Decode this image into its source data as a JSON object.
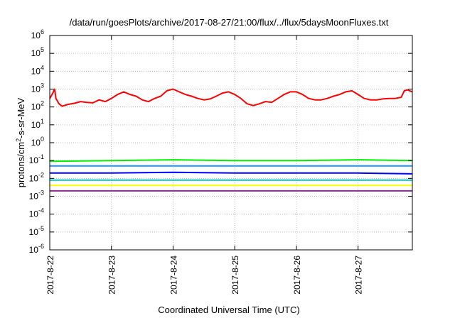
{
  "chart_data": {
    "type": "line",
    "title": "/data/run/goesPlots/archive/2017-08-27/21:00/flux/../flux/5daysMoonFluxes.txt",
    "xlabel": "Coordinated Universal Time (UTC)",
    "ylabel": {
      "prefix": "protons/cm",
      "sup": "2",
      "suffix": "-s-sr-MeV"
    },
    "yscale": "log",
    "ylim": [
      1e-06,
      1000000.0
    ],
    "xlim": [
      0,
      5.88
    ],
    "x_unit_note": "days after 2017-8-22 00:00 UTC",
    "grid": true,
    "y_ticks": [
      {
        "value": 1000000.0,
        "base": "10",
        "exp": "6"
      },
      {
        "value": 100000.0,
        "base": "10",
        "exp": "5"
      },
      {
        "value": 10000.0,
        "base": "10",
        "exp": "4"
      },
      {
        "value": 1000.0,
        "base": "10",
        "exp": "3"
      },
      {
        "value": 100.0,
        "base": "10",
        "exp": "2"
      },
      {
        "value": 10.0,
        "base": "10",
        "exp": "1"
      },
      {
        "value": 1.0,
        "base": "10",
        "exp": "0"
      },
      {
        "value": 0.1,
        "base": "10",
        "exp": "-1"
      },
      {
        "value": 0.01,
        "base": "10",
        "exp": "-2"
      },
      {
        "value": 0.001,
        "base": "10",
        "exp": "-3"
      },
      {
        "value": 0.0001,
        "base": "10",
        "exp": "-4"
      },
      {
        "value": 1e-05,
        "base": "10",
        "exp": "-5"
      },
      {
        "value": 1e-06,
        "base": "10",
        "exp": "-6"
      }
    ],
    "x_ticks": [
      {
        "value": 0,
        "label": "2017-8-22"
      },
      {
        "value": 1,
        "label": "2017-8-23"
      },
      {
        "value": 2,
        "label": "2017-8-24"
      },
      {
        "value": 3,
        "label": "2017-8-25"
      },
      {
        "value": 4,
        "label": "2017-8-26"
      },
      {
        "value": 5,
        "label": "2017-8-27"
      }
    ],
    "series": [
      {
        "color": "#ff0000",
        "x": [
          0,
          0.05,
          0.08,
          0.1,
          0.15,
          0.2,
          0.3,
          0.4,
          0.5,
          0.6,
          0.7,
          0.8,
          0.9,
          1.0,
          1.1,
          1.2,
          1.3,
          1.4,
          1.5,
          1.6,
          1.7,
          1.8,
          1.9,
          2.0,
          2.1,
          2.2,
          2.3,
          2.4,
          2.5,
          2.6,
          2.7,
          2.8,
          2.9,
          3.0,
          3.1,
          3.2,
          3.3,
          3.4,
          3.5,
          3.6,
          3.7,
          3.8,
          3.9,
          4.0,
          4.1,
          4.2,
          4.3,
          4.4,
          4.5,
          4.6,
          4.7,
          4.8,
          4.9,
          5.0,
          5.1,
          5.2,
          5.3,
          5.4,
          5.5,
          5.6,
          5.7,
          5.75,
          5.8,
          5.88
        ],
        "y": [
          300,
          600,
          1000,
          300,
          150,
          110,
          140,
          160,
          200,
          180,
          170,
          250,
          200,
          300,
          500,
          700,
          500,
          400,
          250,
          200,
          300,
          400,
          800,
          1000,
          700,
          500,
          400,
          300,
          250,
          280,
          400,
          600,
          700,
          500,
          300,
          150,
          120,
          150,
          200,
          180,
          300,
          500,
          700,
          700,
          500,
          300,
          250,
          250,
          300,
          400,
          500,
          700,
          800,
          500,
          300,
          250,
          250,
          280,
          300,
          300,
          350,
          800,
          900,
          700
        ]
      },
      {
        "color": "#00ee00",
        "x": [
          0,
          1,
          2,
          3,
          4,
          5,
          5.88
        ],
        "y": [
          0.09,
          0.1,
          0.11,
          0.1,
          0.1,
          0.11,
          0.1
        ]
      },
      {
        "color": "#1e90ff",
        "x": [
          0,
          1,
          2,
          3,
          4,
          5,
          5.88
        ],
        "y": [
          0.05,
          0.05,
          0.05,
          0.05,
          0.05,
          0.05,
          0.05
        ]
      },
      {
        "color": "#0000ff",
        "x": [
          0,
          1,
          2,
          3,
          4,
          5,
          5.88
        ],
        "y": [
          0.02,
          0.02,
          0.022,
          0.02,
          0.02,
          0.02,
          0.018
        ]
      },
      {
        "color": "#00c0c0",
        "x": [
          0,
          1,
          2,
          3,
          4,
          5,
          5.88
        ],
        "y": [
          0.008,
          0.008,
          0.008,
          0.008,
          0.008,
          0.008,
          0.008
        ]
      },
      {
        "color": "#ffff00",
        "x": [
          0,
          1,
          2,
          3,
          4,
          5,
          5.88
        ],
        "y": [
          0.004,
          0.004,
          0.004,
          0.004,
          0.004,
          0.004,
          0.004
        ]
      },
      {
        "color": "#8b2e8b",
        "x": [
          0,
          1,
          2,
          3,
          4,
          5,
          5.88
        ],
        "y": [
          0.002,
          0.002,
          0.002,
          0.002,
          0.002,
          0.002,
          0.002
        ]
      }
    ]
  }
}
